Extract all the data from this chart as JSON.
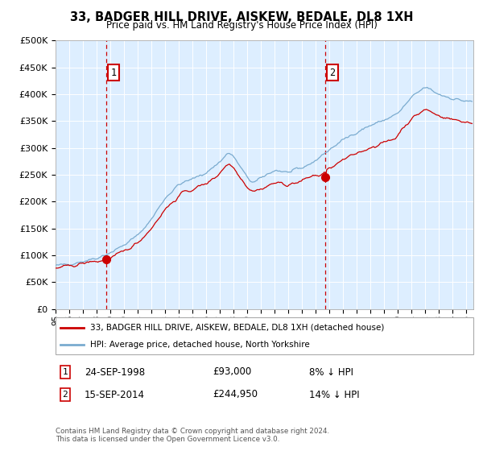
{
  "title": "33, BADGER HILL DRIVE, AISKEW, BEDALE, DL8 1XH",
  "subtitle": "Price paid vs. HM Land Registry's House Price Index (HPI)",
  "ylabel_ticks": [
    "£0",
    "£50K",
    "£100K",
    "£150K",
    "£200K",
    "£250K",
    "£300K",
    "£350K",
    "£400K",
    "£450K",
    "£500K"
  ],
  "ylim": [
    0,
    500000
  ],
  "xlim_start": 1995.0,
  "xlim_end": 2025.5,
  "sale1_x": 1998.73,
  "sale1_y": 93000,
  "sale2_x": 2014.71,
  "sale2_y": 244950,
  "sale1_date": "24-SEP-1998",
  "sale1_price": "£93,000",
  "sale1_hpi": "8% ↓ HPI",
  "sale2_date": "15-SEP-2014",
  "sale2_price": "£244,950",
  "sale2_hpi": "14% ↓ HPI",
  "legend_line1": "33, BADGER HILL DRIVE, AISKEW, BEDALE, DL8 1XH (detached house)",
  "legend_line2": "HPI: Average price, detached house, North Yorkshire",
  "footer": "Contains HM Land Registry data © Crown copyright and database right 2024.\nThis data is licensed under the Open Government Licence v3.0.",
  "line_color_red": "#cc0000",
  "line_color_blue": "#7aabcf",
  "bg_color": "#ddeeff",
  "marker_box_color": "#cc0000",
  "vline_color": "#cc0000"
}
